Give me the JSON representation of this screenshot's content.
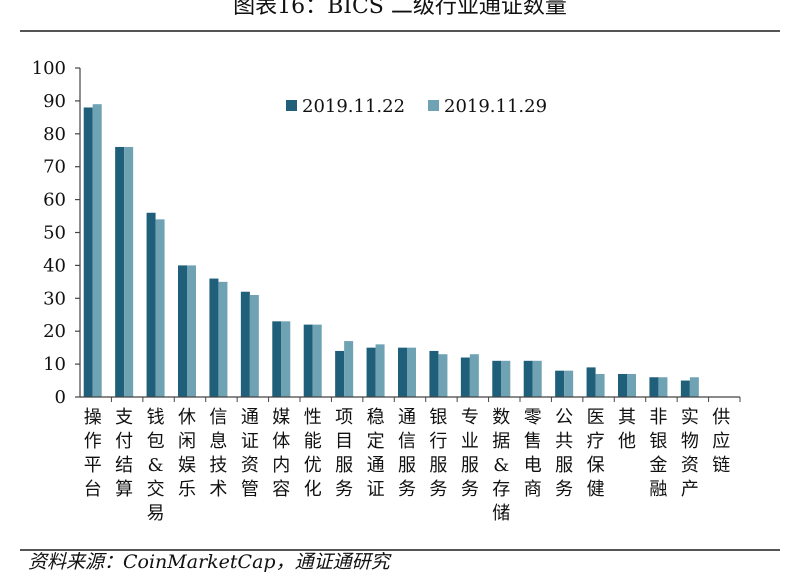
{
  "title": "图表16：BICS 二级行业通证数量",
  "source": "资料来源：CoinMarketCap，通证通研究",
  "colors": {
    "series1": "#1f5f7a",
    "series2": "#6fa2b3",
    "axis": "#444444"
  },
  "chart_data": {
    "type": "bar",
    "title": "",
    "xlabel": "",
    "ylabel": "",
    "ylim": [
      0,
      100
    ],
    "yticks": [
      0,
      10,
      20,
      30,
      40,
      50,
      60,
      70,
      80,
      90,
      100
    ],
    "legend_position": "top-center",
    "grid": false,
    "categories": [
      "操作平台",
      "支付结算",
      "钱包&交易",
      "休闲娱乐",
      "信息技术",
      "通证资管",
      "媒体内容",
      "性能优化",
      "项目服务",
      "稳定通证",
      "通信服务",
      "银行服务",
      "专业服务",
      "数据&存储",
      "零售电商",
      "公共服务",
      "医疗保健",
      "其他",
      "非银金融",
      "实物资产",
      "供应链"
    ],
    "series": [
      {
        "name": "2019.11.22",
        "values": [
          88,
          76,
          56,
          40,
          36,
          32,
          23,
          22,
          14,
          15,
          15,
          14,
          12,
          11,
          11,
          8,
          9,
          7,
          6,
          5,
          0
        ]
      },
      {
        "name": "2019.11.29",
        "values": [
          89,
          76,
          54,
          40,
          35,
          31,
          23,
          22,
          17,
          16,
          15,
          13,
          13,
          11,
          11,
          8,
          7,
          7,
          6,
          6,
          0
        ]
      }
    ]
  }
}
